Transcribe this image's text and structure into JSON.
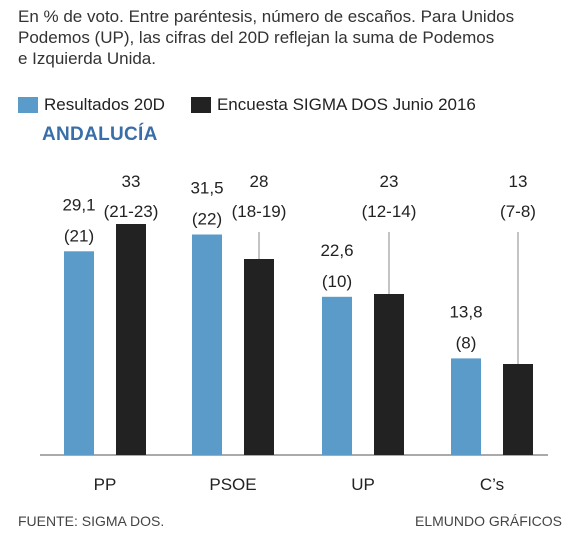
{
  "subtitle_lines": [
    "En % de voto. Entre paréntesis, número de escaños. Para Unidos",
    "Podemos (UP), las cifras del 20D reflejan la suma de Podemos",
    "e Izquierda Unida."
  ],
  "colors": {
    "results": "#5b9bc9",
    "survey": "#222222",
    "region_title": "#3a6ea8",
    "leader_line": "#888888",
    "axis": "#555555"
  },
  "footer": {
    "source": "FUENTE: SIGMA DOS.",
    "credit": "ELMUNDO GRÁFICOS"
  },
  "chart_data": {
    "type": "bar",
    "title": "ANDALUCÍA",
    "categories": [
      "PP",
      "PSOE",
      "UP",
      "C’s"
    ],
    "series": [
      {
        "name": "Resultados 20D",
        "values": [
          29.1,
          31.5,
          22.6,
          13.8
        ],
        "value_labels": [
          "29,1",
          "31,5",
          "22,6",
          "13,8"
        ],
        "seat_labels": [
          "(21)",
          "(22)",
          "(10)",
          "(8)"
        ]
      },
      {
        "name": "Encuesta SIGMA DOS Junio 2016",
        "values": [
          33,
          28,
          23,
          13
        ],
        "value_labels": [
          "33",
          "28",
          "23",
          "13"
        ],
        "seat_labels": [
          "(21-23)",
          "(18-19)",
          "(12-14)",
          "(7-8)"
        ]
      }
    ],
    "ylim": [
      0,
      45
    ],
    "legend_position": "top-left",
    "grid": false
  }
}
